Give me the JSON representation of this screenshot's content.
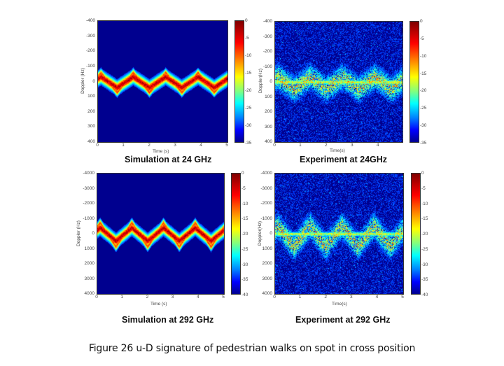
{
  "figure_caption": "Figure 26 u-D signature of pedestrian walks on spot in cross position",
  "chart_data": [
    {
      "type": "heatmap",
      "title": "Simulation at 24 GHz",
      "xlabel": "Time (s)",
      "ylabel": "Doppler (Hz)",
      "xlim": [
        0,
        5
      ],
      "ylim": [
        -400,
        400
      ],
      "x_ticks": [
        "0",
        "1",
        "2",
        "3",
        "4",
        "5"
      ],
      "y_ticks": [
        "-400",
        "-300",
        "-200",
        "-100",
        "0",
        "100",
        "200",
        "300",
        "400"
      ],
      "colorbar_ticks": [
        "0",
        "-5",
        "-10",
        "-15",
        "-20",
        "-25",
        "-30",
        "-35"
      ],
      "colorbar_range": [
        -35,
        0
      ],
      "signature": {
        "period_s": 1.25,
        "peak_hz": -60,
        "trough_hz": 70,
        "noise": false
      }
    },
    {
      "type": "heatmap",
      "title": "Experiment at 24GHz",
      "xlabel": "Time(s)",
      "ylabel": "Doppler(Hz)",
      "xlim": [
        0,
        4.93
      ],
      "ylim": [
        -400,
        400
      ],
      "x_ticks": [
        "0",
        "1",
        "2",
        "3",
        "4"
      ],
      "y_ticks": [
        "-400",
        "-300",
        "-200",
        "-100",
        "0",
        "100",
        "200",
        "300",
        "400"
      ],
      "colorbar_ticks": [
        "0",
        "-5",
        "-10",
        "-15",
        "-20",
        "-25",
        "-30",
        "-35"
      ],
      "colorbar_range": [
        -35,
        0
      ],
      "signature": {
        "period_s": 1.25,
        "peak_hz": -60,
        "trough_hz": 80,
        "noise": true
      }
    },
    {
      "type": "heatmap",
      "title": "Simulation at 292 GHz",
      "xlabel": "Time (s)",
      "ylabel": "Doppler (Hz)",
      "xlim": [
        0,
        5
      ],
      "ylim": [
        -4000,
        4000
      ],
      "x_ticks": [
        "0",
        "1",
        "2",
        "3",
        "4",
        "5"
      ],
      "y_ticks": [
        "-4000",
        "-3000",
        "-2000",
        "-1000",
        "0",
        "1000",
        "2000",
        "3000",
        "4000"
      ],
      "colorbar_ticks": [
        "0",
        "-5",
        "-10",
        "-15",
        "-20",
        "-25",
        "-30",
        "-35",
        "-40"
      ],
      "colorbar_range": [
        -40,
        0
      ],
      "signature": {
        "period_s": 1.25,
        "peak_hz": -750,
        "trough_hz": 850,
        "noise": false
      }
    },
    {
      "type": "heatmap",
      "title": "Experiment at 292 GHz",
      "xlabel": "Time(s)",
      "ylabel": "Doppler(Hz)",
      "xlim": [
        0,
        5
      ],
      "ylim": [
        -4000,
        4000
      ],
      "x_ticks": [
        "0",
        "1",
        "2",
        "3",
        "4",
        "5"
      ],
      "y_ticks": [
        "-4000",
        "-3000",
        "-2000",
        "-1000",
        "0",
        "1000",
        "2000",
        "3000",
        "4000"
      ],
      "colorbar_ticks": [
        "0",
        "-5",
        "-10",
        "-15",
        "-20",
        "-25",
        "-30",
        "-35",
        "-40"
      ],
      "colorbar_range": [
        -40,
        0
      ],
      "signature": {
        "period_s": 1.25,
        "peak_hz": -900,
        "trough_hz": 1400,
        "noise": true
      }
    }
  ]
}
